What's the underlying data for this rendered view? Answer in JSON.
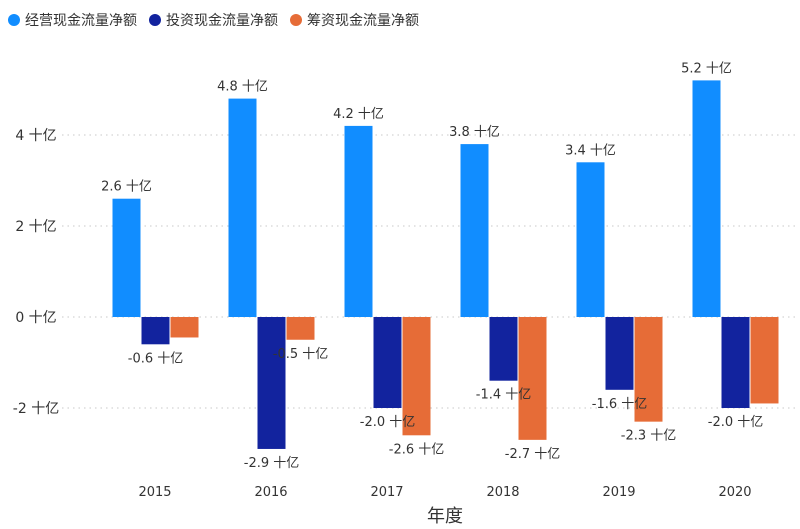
{
  "chart_data": {
    "type": "bar",
    "title": "",
    "xlabel": "年度",
    "ylabel": "",
    "ylim": [
      -3.2,
      5.8
    ],
    "yticks": [
      -2,
      0,
      2,
      4
    ],
    "ytick_labels": [
      "-2 十亿",
      "0 十亿",
      "2 十亿",
      "4 十亿"
    ],
    "grid": "horizontal-dotted",
    "legend_position": "top-left",
    "categories": [
      "2015",
      "2016",
      "2017",
      "2018",
      "2019",
      "2020"
    ],
    "series": [
      {
        "name": "经营现金流量净额",
        "color": "#118dff",
        "values": [
          2.6,
          4.8,
          4.2,
          3.8,
          3.4,
          5.2
        ],
        "labels": [
          "2.6 十亿",
          "4.8 十亿",
          "4.2 十亿",
          "3.8 十亿",
          "3.4 十亿",
          "5.2 十亿"
        ]
      },
      {
        "name": "投资现金流量净额",
        "color": "#12239e",
        "values": [
          -0.6,
          -2.9,
          -2.0,
          -1.4,
          -1.6,
          -2.0
        ],
        "labels": [
          "-0.6 十亿",
          "-2.9 十亿",
          "-2.0 十亿",
          "-1.4 十亿",
          "-1.6 十亿",
          "-2.0 十亿"
        ]
      },
      {
        "name": "筹资现金流量净额",
        "color": "#e66c37",
        "values": [
          -0.45,
          -0.5,
          -2.6,
          -2.7,
          -2.3,
          -1.9
        ],
        "labels": [
          "",
          "-0.5 十亿",
          "-2.6 十亿",
          "-2.7 十亿",
          "-2.3 十亿",
          ""
        ]
      }
    ]
  }
}
